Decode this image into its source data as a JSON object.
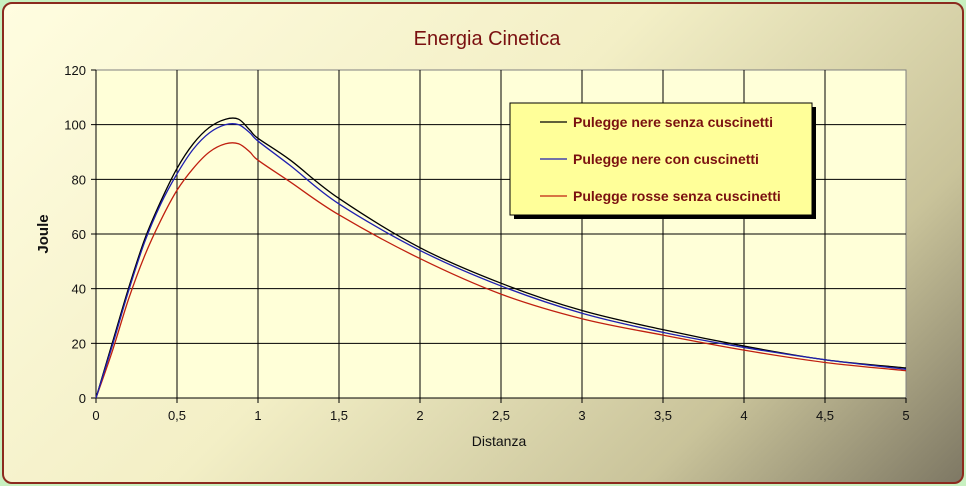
{
  "chart_data": {
    "type": "line",
    "title": "Energia Cinetica",
    "xlabel": "Distanza",
    "ylabel": "Joule",
    "xlim": [
      0,
      5
    ],
    "ylim": [
      0,
      120
    ],
    "x_ticks": [
      "0",
      "0,5",
      "1",
      "1,5",
      "2",
      "2,5",
      "3",
      "3,5",
      "4",
      "4,5",
      "5"
    ],
    "y_ticks": [
      "0",
      "20",
      "40",
      "60",
      "80",
      "100",
      "120"
    ],
    "grid": true,
    "legend_position": "top-right",
    "series": [
      {
        "name": "Pulegge nere senza cuscinetti",
        "color": "#000000",
        "x": [
          0,
          0.1,
          0.2,
          0.3,
          0.4,
          0.5,
          0.6,
          0.7,
          0.8,
          0.88,
          0.95,
          1.0,
          1.2,
          1.5,
          2.0,
          2.5,
          3.0,
          3.5,
          4.0,
          4.5,
          5.0
        ],
        "y": [
          0,
          20,
          40,
          58,
          72,
          84,
          93,
          99,
          102,
          102,
          98,
          95,
          87,
          73,
          55,
          42,
          32,
          25,
          19,
          14,
          11
        ]
      },
      {
        "name": "Pulegge nere con cuscinetti",
        "color": "#1f1fb0",
        "x": [
          0,
          0.1,
          0.2,
          0.3,
          0.4,
          0.5,
          0.6,
          0.7,
          0.8,
          0.88,
          0.95,
          1.0,
          1.2,
          1.5,
          2.0,
          2.5,
          3.0,
          3.5,
          4.0,
          4.5,
          5.0
        ],
        "y": [
          0,
          19,
          39,
          57,
          71,
          82,
          91,
          97,
          100,
          100,
          97,
          94,
          85,
          71,
          54,
          41,
          31,
          24,
          18.5,
          14,
          10.5
        ]
      },
      {
        "name": "Pulegge rosse senza cuscinetti",
        "color": "#c02010",
        "x": [
          0,
          0.1,
          0.2,
          0.3,
          0.4,
          0.5,
          0.6,
          0.7,
          0.8,
          0.88,
          0.95,
          1.0,
          1.2,
          1.5,
          2.0,
          2.5,
          3.0,
          3.5,
          4.0,
          4.5,
          5.0
        ],
        "y": [
          0,
          17,
          36,
          52,
          65,
          76,
          84,
          90,
          93,
          93,
          90,
          87,
          79,
          67,
          51,
          38,
          29,
          23,
          17.5,
          13,
          10
        ]
      }
    ]
  }
}
